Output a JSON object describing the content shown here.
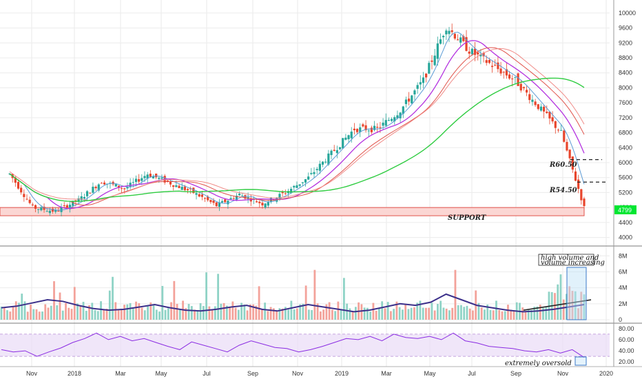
{
  "chart_data": {
    "type": "candlestick",
    "x_axis": {
      "tick_labels": [
        "Nov",
        "2018",
        "Mar",
        "May",
        "Jul",
        "Sep",
        "Nov",
        "2019",
        "Mar",
        "May",
        "Jul",
        "Sep",
        "Nov",
        "2020"
      ]
    },
    "price_panel": {
      "y_ticks": [
        4000,
        4400,
        4800,
        5200,
        5600,
        6000,
        6400,
        6800,
        7200,
        7600,
        8000,
        8400,
        8800,
        9200,
        9600,
        10000
      ],
      "ylim": [
        3900,
        10200
      ],
      "current_price": 4799,
      "current_price_label": "4799",
      "support_label": "SUPPORT",
      "support_zone": [
        4580,
        4800
      ],
      "levels": [
        {
          "label": "R60.50",
          "value": 6080
        },
        {
          "label": "R54.50",
          "value": 5480
        }
      ],
      "colors": {
        "up": "#26a69a",
        "down": "#e8452c",
        "ma_fast": "#5b9bd5",
        "ma_mid": "#b432e0",
        "ma_slow_1": "#e0524a",
        "ma_slow_2": "#f08a86",
        "ma_200": "#2ecc40"
      },
      "close_series": [
        {
          "x": "Oct 2017",
          "y": 5700
        },
        {
          "x": "Nov 2017",
          "y": 4800
        },
        {
          "x": "Dec 2017",
          "y": 4700
        },
        {
          "x": "Jan 2018",
          "y": 5000
        },
        {
          "x": "Feb 2018",
          "y": 5500
        },
        {
          "x": "Mar 2018",
          "y": 5300
        },
        {
          "x": "Apr 2018",
          "y": 5700
        },
        {
          "x": "May 2018",
          "y": 5450
        },
        {
          "x": "Jun 2018",
          "y": 5200
        },
        {
          "x": "Jul 2018",
          "y": 4850
        },
        {
          "x": "Aug 2018",
          "y": 5150
        },
        {
          "x": "Sep 2018",
          "y": 4900
        },
        {
          "x": "Oct 2018",
          "y": 5200
        },
        {
          "x": "Nov 2018",
          "y": 5600
        },
        {
          "x": "Dec 2018",
          "y": 6250
        },
        {
          "x": "Jan 2019",
          "y": 6900
        },
        {
          "x": "Feb 2019",
          "y": 6900
        },
        {
          "x": "Mar 2019",
          "y": 7400
        },
        {
          "x": "Apr 2019",
          "y": 8200
        },
        {
          "x": "May 2019",
          "y": 9650
        },
        {
          "x": "Jun 2019",
          "y": 9000
        },
        {
          "x": "Jul 2019",
          "y": 8600
        },
        {
          "x": "Aug 2019",
          "y": 8200
        },
        {
          "x": "Sep 2019",
          "y": 7500
        },
        {
          "x": "Oct 2019",
          "y": 6800
        },
        {
          "x": "Nov 2019",
          "y": 4799
        }
      ]
    },
    "volume_panel": {
      "y_ticks_labels": [
        "0",
        "2M",
        "4M",
        "6M",
        "8M"
      ],
      "y_ticks": [
        0,
        2,
        4,
        6,
        8
      ],
      "ylim": [
        0,
        8.8
      ],
      "annotation_line1": "high volume and",
      "annotation_line2": "volume increasing",
      "ma_values": [
        1.5,
        1.7,
        2.1,
        2.5,
        2.3,
        1.8,
        1.4,
        1.2,
        1.3,
        1.6,
        1.9,
        1.5,
        1.2,
        1.1,
        1.3,
        1.6,
        1.8,
        1.3,
        1.1,
        1.5,
        1.9,
        1.6,
        1.3,
        1.0,
        1.2,
        1.6,
        2.0,
        1.8,
        2.2,
        3.2,
        2.5,
        1.8,
        1.5,
        1.2,
        1.0,
        1.1,
        1.3,
        1.6,
        1.9
      ]
    },
    "rsi_panel": {
      "y_ticks": [
        20,
        40,
        60,
        80
      ],
      "y_tick_labels": [
        "20.00",
        "40.00",
        "60.00",
        "80.00"
      ],
      "ylim": [
        14,
        86
      ],
      "band": [
        30,
        70
      ],
      "annotation": "extremely oversold",
      "values": [
        42,
        38,
        40,
        30,
        38,
        45,
        55,
        62,
        72,
        60,
        66,
        58,
        62,
        55,
        48,
        42,
        56,
        50,
        44,
        38,
        50,
        58,
        52,
        46,
        44,
        38,
        42,
        48,
        55,
        62,
        60,
        66,
        58,
        70,
        64,
        62,
        66,
        60,
        72,
        58,
        54,
        48,
        46,
        44,
        40,
        38,
        42,
        36,
        42,
        28
      ]
    }
  }
}
